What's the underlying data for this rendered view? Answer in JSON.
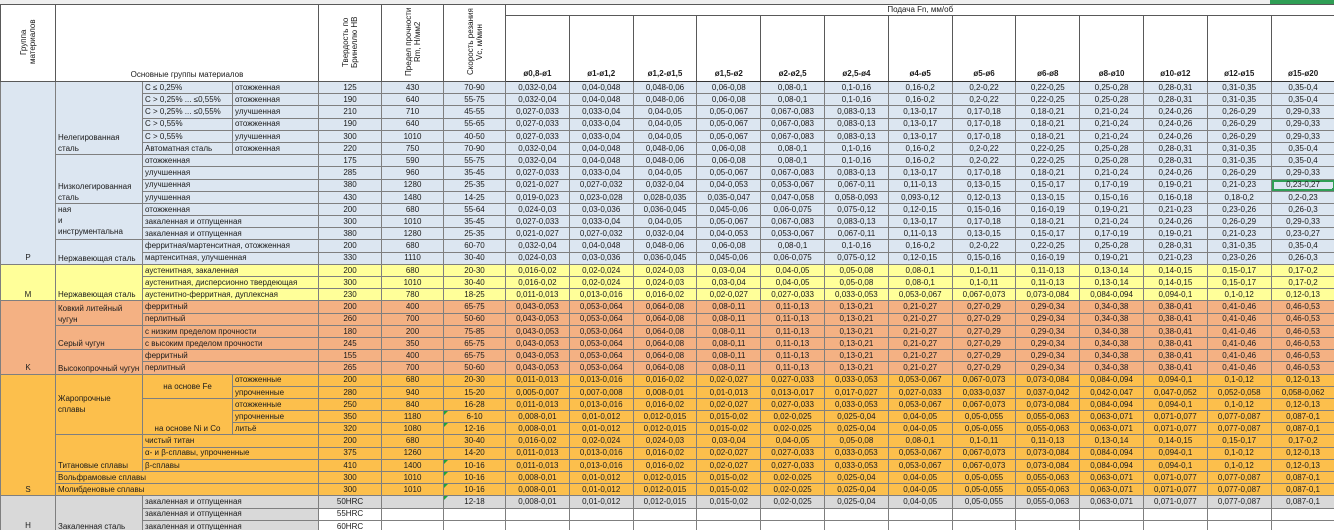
{
  "sheet": {
    "feed_banner": "Подача Fn, мм/об",
    "col_headers": {
      "group": "Группа материалов",
      "materials": "Основные группы материалов",
      "hardness": "Твердость по Бринеллю HB",
      "strength": "Предел прочности Rm, Н/мм2",
      "speed": "Скорость резания Vc, м/мин"
    },
    "diameters": [
      "ø0,8-ø1",
      "ø1-ø1,2",
      "ø1,2-ø1,5",
      "ø1,5-ø2",
      "ø2-ø2,5",
      "ø2,5-ø4",
      "ø4-ø5",
      "ø5-ø6",
      "ø6-ø8",
      "ø8-ø10",
      "ø10-ø12",
      "ø12-ø15",
      "ø15-ø20"
    ],
    "selection_color": "#2f9e55",
    "feed_patterns": {
      "A": [
        "0,032-0,04",
        "0,04-0,048",
        "0,048-0,06",
        "0,06-0,08",
        "0,08-0,1",
        "0,1-0,16",
        "0,16-0,2",
        "0,2-0,22",
        "0,22-0,25",
        "0,25-0,28",
        "0,28-0,31",
        "0,31-0,35",
        "0,35-0,4"
      ],
      "B": [
        "0,027-0,033",
        "0,033-0,04",
        "0,04-0,05",
        "0,05-0,067",
        "0,067-0,083",
        "0,083-0,13",
        "0,13-0,17",
        "0,17-0,18",
        "0,18-0,21",
        "0,21-0,24",
        "0,24-0,26",
        "0,26-0,29",
        "0,29-0,33"
      ],
      "C": [
        "0,021-0,027",
        "0,027-0,032",
        "0,032-0,04",
        "0,04-0,053",
        "0,053-0,067",
        "0,067-0,11",
        "0,11-0,13",
        "0,13-0,15",
        "0,15-0,17",
        "0,17-0,19",
        "0,19-0,21",
        "0,21-0,23",
        "0,23-0,27"
      ],
      "D": [
        "0,019-0,023",
        "0,023-0,028",
        "0,028-0,035",
        "0,035-0,047",
        "0,047-0,058",
        "0,058-0,093",
        "0,093-0,12",
        "0,12-0,13",
        "0,13-0,15",
        "0,15-0,16",
        "0,16-0,18",
        "0,18-0,2",
        "0,2-0,23"
      ],
      "E": [
        "0,024-0,03",
        "0,03-0,036",
        "0,036-0,045",
        "0,045-0,06",
        "0,06-0,075",
        "0,075-0,12",
        "0,12-0,15",
        "0,15-0,16",
        "0,16-0,19",
        "0,19-0,21",
        "0,21-0,23",
        "0,23-0,26",
        "0,26-0,3"
      ],
      "F": [
        "0,016-0,02",
        "0,02-0,024",
        "0,024-0,03",
        "0,03-0,04",
        "0,04-0,05",
        "0,05-0,08",
        "0,08-0,1",
        "0,1-0,11",
        "0,11-0,13",
        "0,13-0,14",
        "0,14-0,15",
        "0,15-0,17",
        "0,17-0,2"
      ],
      "G": [
        "0,011-0,013",
        "0,013-0,016",
        "0,016-0,02",
        "0,02-0,027",
        "0,027-0,033",
        "0,033-0,053",
        "0,053-0,067",
        "0,067-0,073",
        "0,073-0,084",
        "0,084-0,094",
        "0,094-0,1",
        "0,1-0,12",
        "0,12-0,13"
      ],
      "H": [
        "0,043-0,053",
        "0,053-0,064",
        "0,064-0,08",
        "0,08-0,11",
        "0,11-0,13",
        "0,13-0,21",
        "0,21-0,27",
        "0,27-0,29",
        "0,29-0,34",
        "0,34-0,38",
        "0,38-0,41",
        "0,41-0,46",
        "0,46-0,53"
      ],
      "I": [
        "0,005-0,007",
        "0,007-0,008",
        "0,008-0,01",
        "0,01-0,013",
        "0,013-0,017",
        "0,017-0,027",
        "0,027-0,033",
        "0,033-0,037",
        "0,037-0,042",
        "0,042-0,047",
        "0,047-0,052",
        "0,052-0,058",
        "0,058-0,062"
      ],
      "J": [
        "0,008-0,01",
        "0,01-0,012",
        "0,012-0,015",
        "0,015-0,02",
        "0,02-0,025",
        "0,025-0,04",
        "0,04-0,05",
        "0,05-0,055",
        "0,055-0,063",
        "0,063-0,071",
        "0,071-0,077",
        "0,077-0,087",
        "0,087-0,1"
      ],
      "EMPTY": [
        "",
        "",
        "",
        "",
        "",
        "",
        "",
        "",
        "",
        "",
        "",
        "",
        ""
      ]
    },
    "sections": [
      {
        "letter": "P",
        "color": "#dce6f1",
        "rows": [
          {
            "c2": {
              "t": "Нелегированная сталь",
              "rs": 6
            },
            "c3": "C ≤ 0,25%",
            "c4": "отожженная",
            "hb": "125",
            "rm": "430",
            "vc": "70-90",
            "pat": "A"
          },
          {
            "c3": "C > 0,25% ... ≤0,55%",
            "c4": "отожженная",
            "hb": "190",
            "rm": "640",
            "vc": "55-75",
            "pat": "A"
          },
          {
            "c3": "C > 0,25% ... ≤0,55%",
            "c4": "улучшенная",
            "hb": "210",
            "rm": "710",
            "vc": "45-55",
            "pat": "B"
          },
          {
            "c3": "C > 0,55%",
            "c4": "отожженная",
            "hb": "190",
            "rm": "640",
            "vc": "55-65",
            "pat": "B"
          },
          {
            "c3": "C > 0,55%",
            "c4": "улучшенная",
            "hb": "300",
            "rm": "1010",
            "vc": "40-50",
            "pat": "B"
          },
          {
            "c3": "Автоматная сталь",
            "c4": "отожженная",
            "hb": "220",
            "rm": "750",
            "vc": "70-90",
            "pat": "A"
          },
          {
            "c2": {
              "t": "Низколегированная сталь",
              "rs": 4
            },
            "c34": "отожженная",
            "hb": "175",
            "rm": "590",
            "vc": "55-75",
            "pat": "A"
          },
          {
            "c34": "улучшенная",
            "hb": "285",
            "rm": "960",
            "vc": "35-45",
            "pat": "B"
          },
          {
            "c34": "улучшенная",
            "hb": "380",
            "rm": "1280",
            "vc": "25-35",
            "pat": "C",
            "sel": 12
          },
          {
            "c34": "улучшенная",
            "hb": "430",
            "rm": "1480",
            "vc": "14-25",
            "pat": "D"
          },
          {
            "c2": {
              "t": "ная\nи\nинструментальна",
              "rs": 3,
              "va": "top"
            },
            "c34": "отожженная",
            "hb": "200",
            "rm": "680",
            "vc": "55-64",
            "pat": "E"
          },
          {
            "c34": "закаленная и отпущенная",
            "hb": "300",
            "rm": "1010",
            "vc": "35-45",
            "pat": "B"
          },
          {
            "c34": "закаленная и отпущенная",
            "hb": "380",
            "rm": "1280",
            "vc": "25-35",
            "pat": "C"
          },
          {
            "c2": {
              "t": "Нержавеющая сталь",
              "rs": 2
            },
            "c34": "ферритная/мартенситная, отожженная",
            "hb": "200",
            "rm": "680",
            "vc": "60-70",
            "pat": "A"
          },
          {
            "c34": "мартенситная, улучшенная",
            "hb": "330",
            "rm": "1110",
            "vc": "30-40",
            "pat": "E"
          }
        ]
      },
      {
        "letter": "M",
        "color": "#ffff99",
        "rows": [
          {
            "c2": {
              "t": "Нержавеющая сталь",
              "rs": 3
            },
            "c34": "аустенитная, закаленная",
            "hb": "200",
            "rm": "680",
            "vc": "20-30",
            "pat": "F"
          },
          {
            "c34": "аустенитная, дисперсионно твердеющая",
            "hb": "300",
            "rm": "1010",
            "vc": "30-40",
            "pat": "F"
          },
          {
            "c34": "аустенитно-ферритная, дуплексная",
            "hb": "230",
            "rm": "780",
            "vc": "18-25",
            "pat": "G"
          }
        ]
      },
      {
        "letter": "K",
        "color": "#f4b183",
        "rows": [
          {
            "c2": {
              "t": "Ковкий литейный чугун",
              "rs": 2
            },
            "c34": "ферритный",
            "hb": "200",
            "rm": "400",
            "vc": "65-75",
            "pat": "H"
          },
          {
            "c34": "перлитный",
            "hb": "260",
            "rm": "700",
            "vc": "50-60",
            "pat": "H"
          },
          {
            "c2": {
              "t": "Серый чугун",
              "rs": 2
            },
            "c34": "с низким пределом прочности",
            "hb": "180",
            "rm": "200",
            "vc": "75-85",
            "pat": "H"
          },
          {
            "c34": "с высоким пределом прочности",
            "hb": "245",
            "rm": "350",
            "vc": "65-75",
            "pat": "H"
          },
          {
            "c2": {
              "t": "Высокопрочный чугун",
              "rs": 2
            },
            "c34": "ферритный",
            "hb": "155",
            "rm": "400",
            "vc": "65-75",
            "pat": "H"
          },
          {
            "c34": "перлитный",
            "hb": "265",
            "rm": "700",
            "vc": "50-60",
            "pat": "H"
          }
        ]
      },
      {
        "letter": "S",
        "color": "#fcbf4c",
        "rows": [
          {
            "c2": {
              "t": "Жаропрочные сплавы",
              "rs": 5,
              "va": "mid"
            },
            "c3": {
              "t": "на основе Fe",
              "rs": 2,
              "va": "mid",
              "ctr": true
            },
            "c4": "отожженные",
            "hb": "200",
            "rm": "680",
            "vc": "20-30",
            "pat": "G"
          },
          {
            "c4": "упрочненные",
            "hb": "280",
            "rm": "940",
            "vc": "15-20",
            "pat": "I"
          },
          {
            "c3": {
              "t": "на основе Ni и Co",
              "rs": 3,
              "va": "bottom",
              "ctr": true
            },
            "c4": "отожженные",
            "hb": "250",
            "rm": "840",
            "vc": "16-28",
            "pat": "G"
          },
          {
            "c4": "упрочненные",
            "hb": "350",
            "rm": "1180",
            "vc": "6-10",
            "pat": "J",
            "note": true
          },
          {
            "c4": "литьё",
            "hb": "320",
            "rm": "1080",
            "vc": "12-16",
            "pat": "J",
            "note": true
          },
          {
            "c2": {
              "t": "Титановые сплавы",
              "rs": 3
            },
            "c34": "чистый титан",
            "hb": "200",
            "rm": "680",
            "vc": "30-40",
            "pat": "F"
          },
          {
            "c34": "α- и β-сплавы, упрочненные",
            "hb": "375",
            "rm": "1260",
            "vc": "14-20",
            "pat": "G"
          },
          {
            "c34": "β-сплавы",
            "hb": "410",
            "rm": "1400",
            "vc": "10-16",
            "pat": "G",
            "note": true
          },
          {
            "c234": "Вольфрамовые сплавы",
            "hb": "300",
            "rm": "1010",
            "vc": "10-16",
            "pat": "J",
            "note": true
          },
          {
            "c234": "Молибденовые сплавы",
            "hb": "300",
            "rm": "1010",
            "vc": "10-16",
            "pat": "J",
            "note": true
          }
        ]
      },
      {
        "letter": "H",
        "color": "#d9d9d9",
        "rows": [
          {
            "c2": {
              "t": "Закаленная сталь",
              "rs": 3
            },
            "c34": "закаленная и отпущенная",
            "hb": "50HRC",
            "rm": "",
            "vc": "12-18",
            "pat": "J",
            "note": true
          },
          {
            "c34": "закаленная и отпущенная",
            "hb": "55HRC",
            "rm": "",
            "vc": "",
            "pat": "EMPTY",
            "white": true
          },
          {
            "c34": "закаленная и отпущенная",
            "hb": "60HRC",
            "rm": "",
            "vc": "",
            "pat": "EMPTY",
            "white": true
          }
        ]
      }
    ]
  }
}
